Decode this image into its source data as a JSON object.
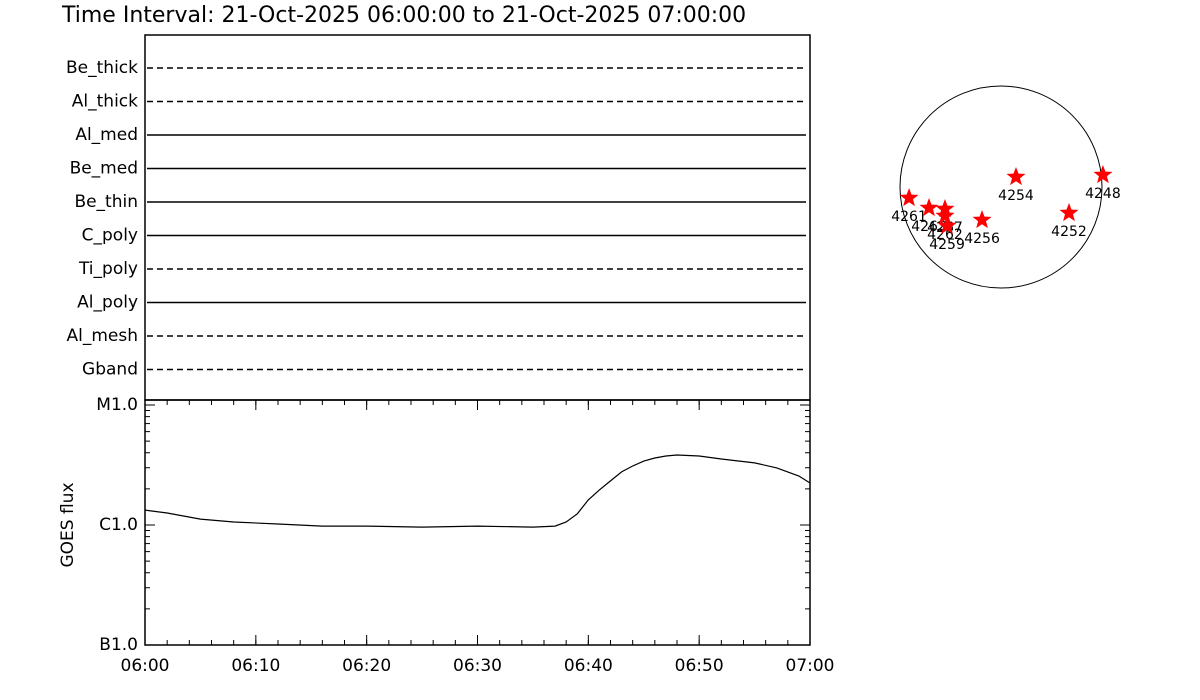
{
  "title": "Time Interval: 21-Oct-2025 06:00:00 to 21-Oct-2025 07:00:00",
  "filters": {
    "rows": [
      {
        "label": "Be_thick",
        "style": "dashed"
      },
      {
        "label": "Al_thick",
        "style": "dashed"
      },
      {
        "label": "Al_med",
        "style": "solid"
      },
      {
        "label": "Be_med",
        "style": "solid"
      },
      {
        "label": "Be_thin",
        "style": "solid"
      },
      {
        "label": "C_poly",
        "style": "solid"
      },
      {
        "label": "Ti_poly",
        "style": "dashed"
      },
      {
        "label": "Al_poly",
        "style": "solid"
      },
      {
        "label": "Al_mesh",
        "style": "dashed"
      },
      {
        "label": "Gband",
        "style": "dashed"
      }
    ]
  },
  "chart_data": {
    "type": "line",
    "y_label": "GOES flux",
    "log_scale": true,
    "x": [
      "06:00",
      "06:02",
      "06:05",
      "06:08",
      "06:12",
      "06:16",
      "06:20",
      "06:25",
      "06:30",
      "06:35",
      "06:37",
      "06:38",
      "06:39",
      "06:40",
      "06:41",
      "06:42",
      "06:43",
      "06:44",
      "06:45",
      "06:46",
      "06:47",
      "06:48",
      "06:50",
      "06:52",
      "06:55",
      "06:57",
      "06:59",
      "07:00"
    ],
    "series": [
      {
        "color": "#000000",
        "values": [
          1.33e-06,
          1.26e-06,
          1.12e-06,
          1.06e-06,
          1.02e-06,
          9.8e-07,
          9.8e-07,
          9.6e-07,
          9.8e-07,
          9.6e-07,
          9.8e-07,
          1.06e-06,
          1.24e-06,
          1.62e-06,
          1.96e-06,
          2.33e-06,
          2.77e-06,
          3.1e-06,
          3.41e-06,
          3.62e-06,
          3.76e-06,
          3.83e-06,
          3.76e-06,
          3.55e-06,
          3.29e-06,
          2.99e-06,
          2.56e-06,
          2.24e-06
        ]
      }
    ],
    "xlim": [
      "06:00",
      "07:00"
    ],
    "xticks": [
      "06:00",
      "06:10",
      "06:20",
      "06:30",
      "06:40",
      "06:50",
      "07:00"
    ],
    "ylim": [
      1e-07,
      1e-05
    ],
    "yticks": [
      {
        "value": 1e-07,
        "label": "B1.0"
      },
      {
        "value": 1e-06,
        "label": "C1.0"
      },
      {
        "value": 1e-05,
        "label": "M1.0"
      }
    ]
  },
  "disk": {
    "xlim": [
      -1066,
      1066
    ],
    "ylim": [
      -1066,
      1066
    ],
    "marker_color": "#ff0000",
    "regions": [
      {
        "label": "4261",
        "x": -883,
        "y": -106
      },
      {
        "label": "4263",
        "x": -691,
        "y": -202
      },
      {
        "label": "4267",
        "x": -538,
        "y": -211
      },
      {
        "label": "4262",
        "x": -538,
        "y": -278
      },
      {
        "label": "4259",
        "x": -518,
        "y": -374
      },
      {
        "label": "4256",
        "x": -182,
        "y": -317
      },
      {
        "label": "4254",
        "x": 144,
        "y": 96
      },
      {
        "label": "4252",
        "x": 653,
        "y": -250
      },
      {
        "label": "4248",
        "x": 979,
        "y": 115
      }
    ]
  }
}
